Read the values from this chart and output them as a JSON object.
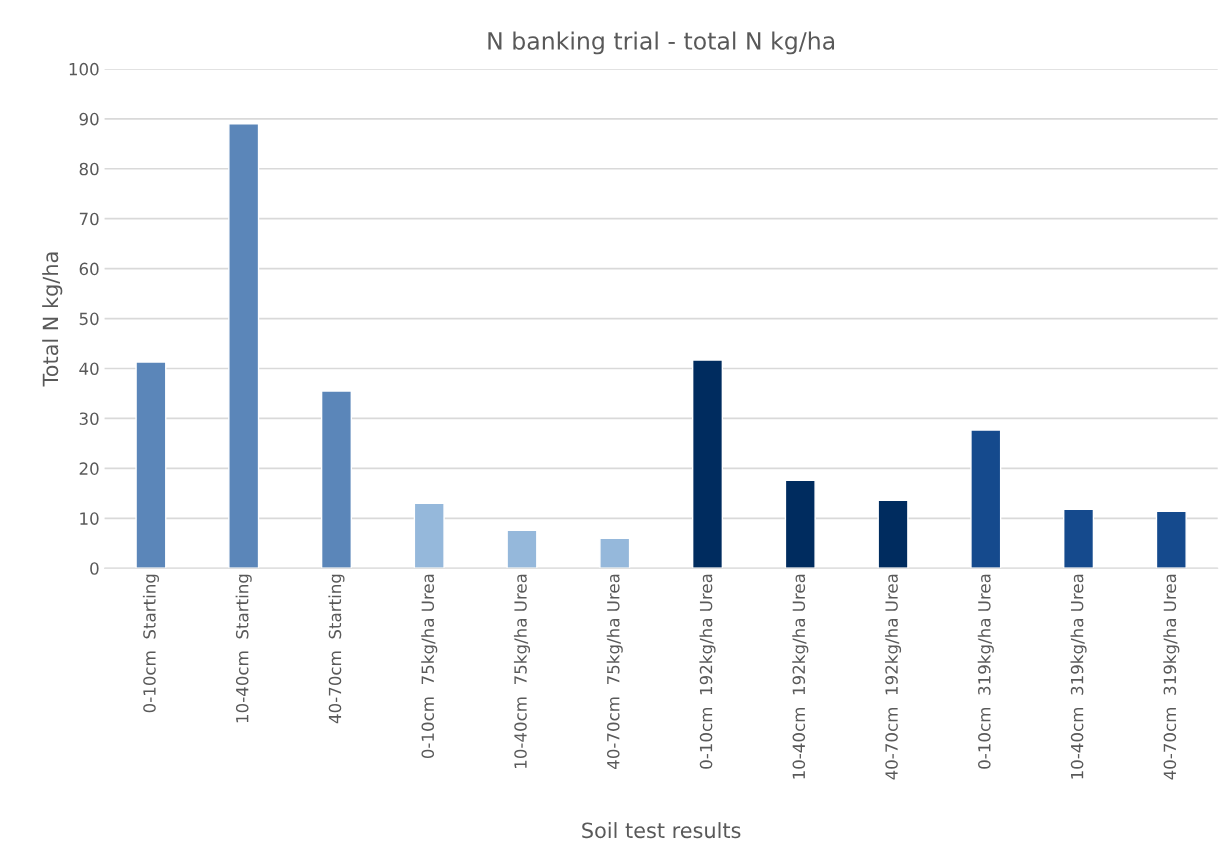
{
  "chart_data": {
    "type": "bar",
    "title": "N banking trial - total N kg/ha",
    "xlabel": "Soil test results",
    "ylabel": "Total N kg/ha",
    "categories": [
      "0-10cm  Starting",
      "10-40cm  Starting",
      "40-70cm  Starting",
      "0-10cm  75kg/ha Urea",
      "10-40cm  75kg/ha Urea",
      "40-70cm  75kg/ha Urea",
      "0-10cm  192kg/ha Urea",
      "10-40cm  192kg/ha Urea",
      "40-70cm  192kg/ha Urea",
      "0-10cm  319kg/ha Urea",
      "10-40cm  319kg/ha Urea",
      "40-70cm  319kg/ha Urea"
    ],
    "values": [
      41.3,
      89,
      35.5,
      13,
      7.6,
      6,
      41.7,
      17.6,
      13.6,
      27.7,
      11.8,
      11.4
    ],
    "colors": [
      "#5b86b9",
      "#5b86b9",
      "#5b86b9",
      "#95b8db",
      "#95b8db",
      "#95b8db",
      "#002c5f",
      "#002c5f",
      "#002c5f",
      "#154a8d",
      "#154a8d",
      "#154a8d"
    ],
    "ylim": [
      0,
      100
    ],
    "yticks": [
      0,
      10,
      20,
      30,
      40,
      50,
      60,
      70,
      80,
      90,
      100
    ],
    "grid": "y",
    "legend": false
  }
}
